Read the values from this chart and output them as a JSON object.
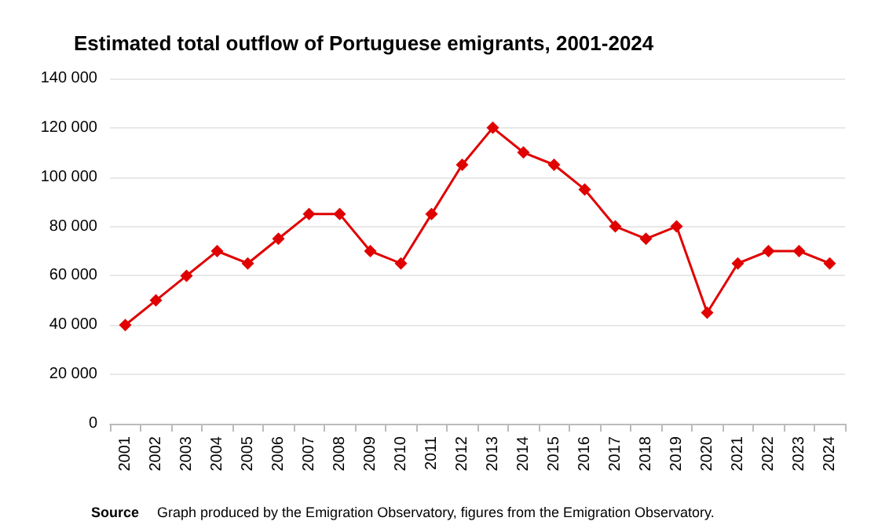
{
  "chart_data": {
    "type": "line",
    "title": "Estimated total outflow of Portuguese emigrants, 2001-2024",
    "categories": [
      "2001",
      "2002",
      "2003",
      "2004",
      "2005",
      "2006",
      "2007",
      "2008",
      "2009",
      "2010",
      "2011",
      "2012",
      "2013",
      "2014",
      "2015",
      "2016",
      "2017",
      "2018",
      "2019",
      "2020",
      "2021",
      "2022",
      "2023",
      "2024"
    ],
    "series": [
      {
        "color": "#e00000",
        "values": [
          40000,
          50000,
          60000,
          70000,
          65000,
          75000,
          85000,
          85000,
          70000,
          65000,
          85000,
          105000,
          120000,
          110000,
          105000,
          95000,
          80000,
          75000,
          80000,
          45000,
          65000,
          70000,
          70000,
          65000
        ]
      }
    ],
    "ylim": [
      0,
      140000
    ],
    "yticks": [
      {
        "value": 0,
        "label": "0"
      },
      {
        "value": 20000,
        "label": "20 000"
      },
      {
        "value": 40000,
        "label": "40 000"
      },
      {
        "value": 60000,
        "label": "60 000"
      },
      {
        "value": 80000,
        "label": "80 000"
      },
      {
        "value": 100000,
        "label": "100 000"
      },
      {
        "value": 120000,
        "label": "120 000"
      },
      {
        "value": 140000,
        "label": "140 000"
      }
    ],
    "grid": "y",
    "marker": "diamond",
    "line_style": "solid",
    "annotations": [
      "Source",
      "Graph produced by the Emigration Observatory, figures from the Emigration Observatory."
    ]
  }
}
